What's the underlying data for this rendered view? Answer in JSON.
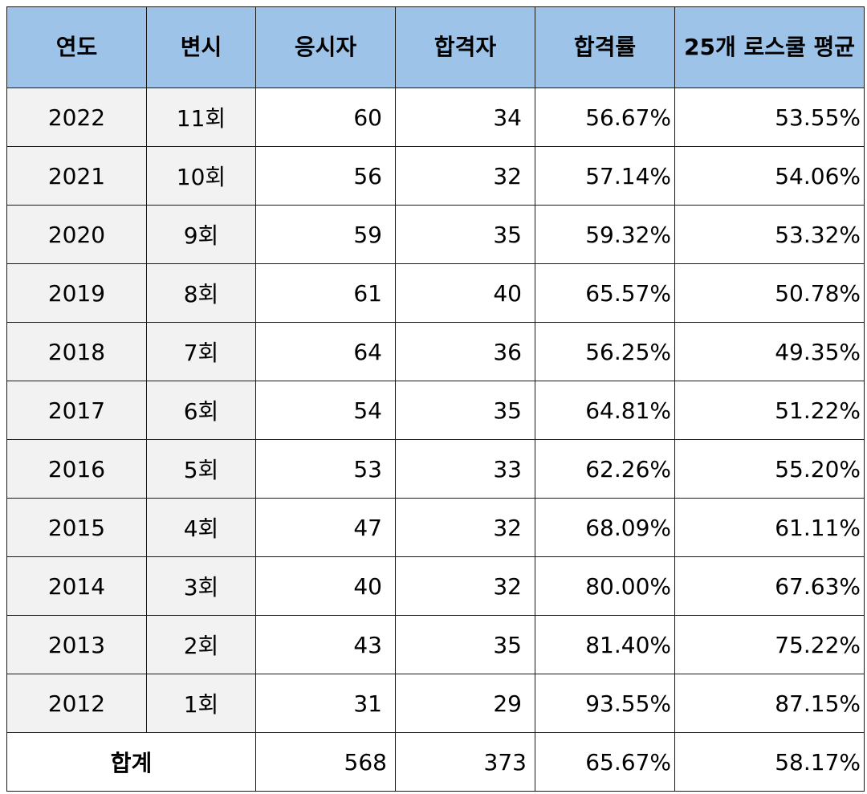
{
  "table": {
    "headers": [
      "연도",
      "변시",
      "응시자",
      "합격자",
      "합격률",
      "25개 로스쿨 평균"
    ],
    "rows": [
      {
        "year": "2022",
        "round": "11회",
        "applicants": "60",
        "passers": "34",
        "rate": "56.67%",
        "avg": "53.55%"
      },
      {
        "year": "2021",
        "round": "10회",
        "applicants": "56",
        "passers": "32",
        "rate": "57.14%",
        "avg": "54.06%"
      },
      {
        "year": "2020",
        "round": "9회",
        "applicants": "59",
        "passers": "35",
        "rate": "59.32%",
        "avg": "53.32%"
      },
      {
        "year": "2019",
        "round": "8회",
        "applicants": "61",
        "passers": "40",
        "rate": "65.57%",
        "avg": "50.78%"
      },
      {
        "year": "2018",
        "round": "7회",
        "applicants": "64",
        "passers": "36",
        "rate": "56.25%",
        "avg": "49.35%"
      },
      {
        "year": "2017",
        "round": "6회",
        "applicants": "54",
        "passers": "35",
        "rate": "64.81%",
        "avg": "51.22%"
      },
      {
        "year": "2016",
        "round": "5회",
        "applicants": "53",
        "passers": "33",
        "rate": "62.26%",
        "avg": "55.20%"
      },
      {
        "year": "2015",
        "round": "4회",
        "applicants": "47",
        "passers": "32",
        "rate": "68.09%",
        "avg": "61.11%"
      },
      {
        "year": "2014",
        "round": "3회",
        "applicants": "40",
        "passers": "32",
        "rate": "80.00%",
        "avg": "67.63%"
      },
      {
        "year": "2013",
        "round": "2회",
        "applicants": "43",
        "passers": "35",
        "rate": "81.40%",
        "avg": "75.22%"
      },
      {
        "year": "2012",
        "round": "1회",
        "applicants": "31",
        "passers": "29",
        "rate": "93.55%",
        "avg": "87.15%"
      }
    ],
    "total": {
      "label": "합계",
      "applicants": "568",
      "passers": "373",
      "rate": "65.67%",
      "avg": "58.17%"
    }
  },
  "colors": {
    "header_bg": "#9ec3e8",
    "key_column_bg": "#f2f2f2",
    "border": "#1a1a1a"
  }
}
